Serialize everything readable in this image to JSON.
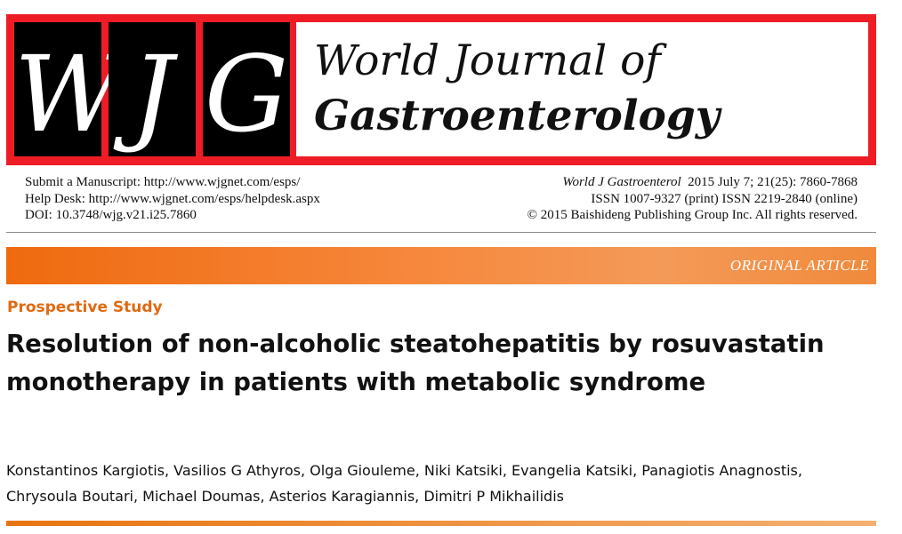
{
  "logo": {
    "letters": [
      "W",
      "J",
      "G"
    ]
  },
  "journal": {
    "title_line1": "World Journal of",
    "title_line2": "Gastroenterology"
  },
  "submission": {
    "manuscript": "Submit a Manuscript: http://www.wjgnet.com/esps/",
    "helpdesk": "Help Desk: http://www.wjgnet.com/esps/helpdesk.aspx",
    "doi": "DOI: 10.3748/wjg.v21.i25.7860"
  },
  "citation": {
    "journal_abbrev": "World J Gastroenterol",
    "issue": "2015 July 7; 21(25): 7860-7868",
    "issn": "ISSN 1007-9327 (print)  ISSN 2219-2840 (online)",
    "copyright": "© 2015 Baishideng Publishing Group Inc. All rights reserved."
  },
  "banner": {
    "label": "ORIGINAL ARTICLE"
  },
  "article": {
    "section": "Prospective Study",
    "title_line1": "Resolution of non-alcoholic steatohepatitis by rosuvastatin",
    "title_line2": "monotherapy in patients with metabolic syndrome",
    "authors_line1": "Konstantinos Kargiotis, Vasilios G Athyros, Olga Giouleme, Niki Katsiki, Evangelia Katsiki, Panagiotis Anagnostis,",
    "authors_line2": "Chrysoula Boutari, Michael Doumas, Asterios Karagiannis, Dimitri P Mikhailidis"
  },
  "colors": {
    "masthead_red": "#ee1c25",
    "accent_orange": "#ef6a0f",
    "section_orange": "#e06a12"
  }
}
